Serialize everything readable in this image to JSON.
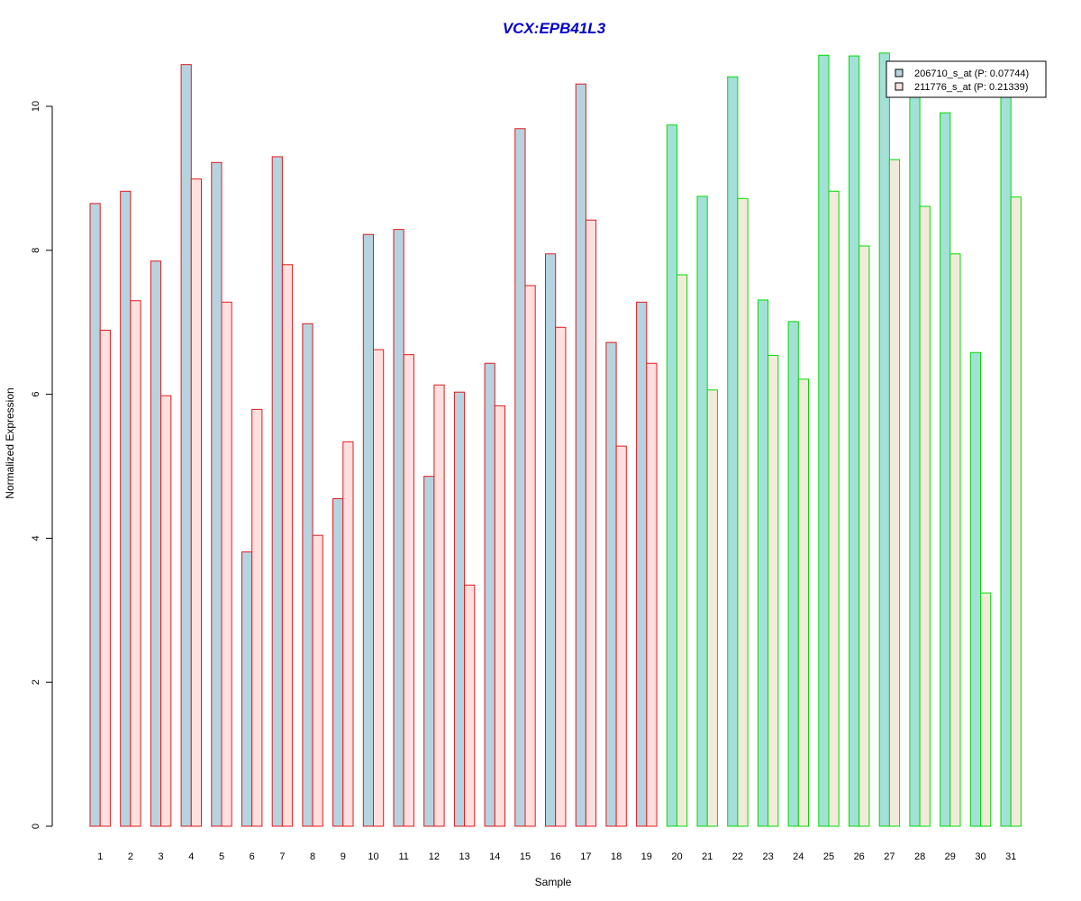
{
  "chart_data": {
    "type": "bar",
    "title": "VCX:EPB41L3",
    "xlabel": "Sample",
    "ylabel": "Normalized Expression",
    "ylim": [
      0,
      10.75
    ],
    "yticks": [
      "0",
      "2",
      "4",
      "6",
      "8",
      "10"
    ],
    "categories": [
      "1",
      "2",
      "3",
      "4",
      "5",
      "6",
      "7",
      "8",
      "9",
      "10",
      "11",
      "12",
      "13",
      "14",
      "15",
      "16",
      "17",
      "18",
      "19",
      "20",
      "21",
      "22",
      "23",
      "24",
      "25",
      "26",
      "27",
      "28",
      "29",
      "30",
      "31"
    ],
    "group_split_after": "19",
    "legend_position": "top-right",
    "grid": false,
    "series": [
      {
        "name": "206710_s_at (P: 0.07744)",
        "values": [
          8.65,
          8.82,
          7.85,
          10.58,
          9.22,
          3.81,
          9.3,
          6.98,
          4.55,
          8.22,
          8.29,
          4.86,
          6.03,
          6.43,
          9.69,
          7.95,
          10.31,
          6.72,
          7.28,
          9.74,
          8.75,
          10.41,
          7.31,
          7.01,
          10.71,
          10.7,
          10.74,
          10.2,
          9.91,
          6.58,
          10.3
        ]
      },
      {
        "name": "211776_s_at (P: 0.21339)",
        "values": [
          6.89,
          7.3,
          5.98,
          8.99,
          7.28,
          5.79,
          7.8,
          4.04,
          5.34,
          6.62,
          6.55,
          6.13,
          3.35,
          5.84,
          7.51,
          6.93,
          8.42,
          5.28,
          6.43,
          7.66,
          6.06,
          8.72,
          6.54,
          6.21,
          8.82,
          8.06,
          9.26,
          8.61,
          7.95,
          3.24,
          8.74
        ]
      }
    ]
  },
  "colors": {
    "title": "#0000cc",
    "group1_border": "#e31a1c",
    "group2_border": "#00dd00",
    "group1_series1_fill": "#b6d3e0",
    "group1_series2_fill": "#ffe0de",
    "group2_series1_fill": "#a2e0d8",
    "group2_series2_fill": "#f3ebda",
    "legend_series1_fill": "#b6d3e0",
    "legend_series2_fill": "#ffe0de"
  }
}
